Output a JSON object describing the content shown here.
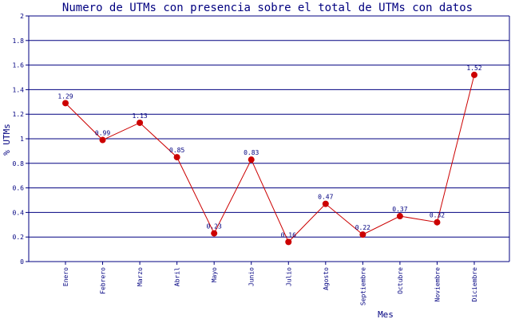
{
  "chart_data": {
    "type": "line",
    "title": "Numero de UTMs con presencia sobre el total de UTMs con datos",
    "xlabel": "Mes",
    "ylabel": "% UTMs",
    "categories": [
      "Enero",
      "Febrero",
      "Marzo",
      "Abril",
      "Mayo",
      "Junio",
      "Julio",
      "Agosto",
      "Septiembre",
      "Octubre",
      "Noviembre",
      "Diciembre"
    ],
    "values": [
      1.29,
      0.99,
      1.13,
      0.85,
      0.23,
      0.83,
      0.16,
      0.47,
      0.22,
      0.37,
      0.32,
      1.52
    ],
    "data_labels": [
      "1.29",
      "0.99",
      "1.13",
      "0.85",
      "0.23",
      "0.83",
      "0.16",
      "0.47",
      "0.22",
      "0.37",
      "0.32",
      "1.52"
    ],
    "yticks": [
      "0",
      "0.2",
      "0.4",
      "0.6",
      "0.8",
      "1",
      "1.2",
      "1.4",
      "1.6",
      "1.8",
      "2"
    ],
    "ylim": [
      0,
      2
    ],
    "grid": true,
    "legend": "none",
    "colors": {
      "line": "#cc0000",
      "marker": "#cc0000",
      "grid": "#000080",
      "text": "#000080",
      "axis": "#000080"
    }
  }
}
